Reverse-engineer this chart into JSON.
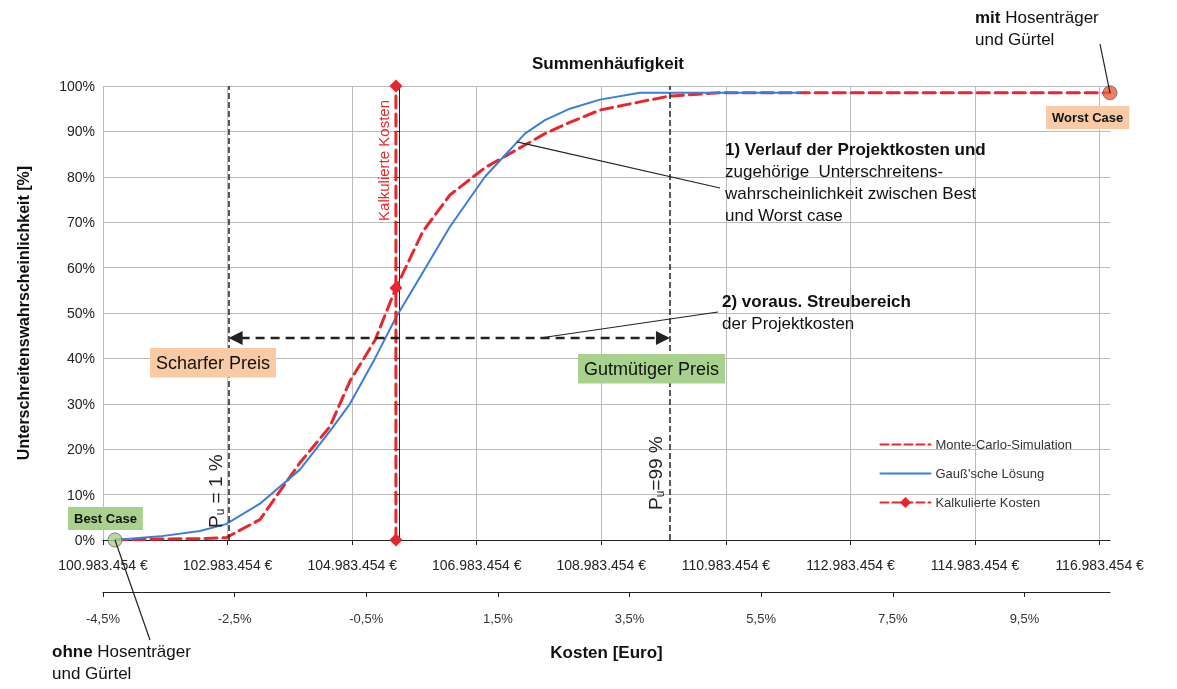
{
  "chart_data": {
    "type": "line",
    "title": "Summenhäufigkeit",
    "xlabel": "Kosten [Euro]",
    "ylabel": "Unterschreitenswahrscheinlichkeit [%]",
    "xlim": [
      100983454,
      117150000
    ],
    "xticks": [
      {
        "value": 100983454,
        "label": "100.983.454 €"
      },
      {
        "value": 102983454,
        "label": "102.983.454 €"
      },
      {
        "value": 104983454,
        "label": "104.983.454 €"
      },
      {
        "value": 106983454,
        "label": "106.983.454 €"
      },
      {
        "value": 108983454,
        "label": "108.983.454 €"
      },
      {
        "value": 110983454,
        "label": "110.983.454 €"
      },
      {
        "value": 112983454,
        "label": "112.983.454 €"
      },
      {
        "value": 114983454,
        "label": "114.983.454 €"
      },
      {
        "value": 116983454,
        "label": "116.983.454 €"
      }
    ],
    "x2lim": [
      -4.5,
      10.8
    ],
    "x2ticks": [
      {
        "value": -4.5,
        "label": "-4,5%"
      },
      {
        "value": -2.5,
        "label": "-2,5%"
      },
      {
        "value": -0.5,
        "label": "-0,5%"
      },
      {
        "value": 1.5,
        "label": "1,5%"
      },
      {
        "value": 3.5,
        "label": "3,5%"
      },
      {
        "value": 5.5,
        "label": "5,5%"
      },
      {
        "value": 7.5,
        "label": "7,5%"
      },
      {
        "value": 9.5,
        "label": "9,5%"
      }
    ],
    "ylim": [
      0,
      100
    ],
    "yticks": [
      {
        "value": 0,
        "label": "0%"
      },
      {
        "value": 10,
        "label": "10%"
      },
      {
        "value": 20,
        "label": "20%"
      },
      {
        "value": 30,
        "label": "30%"
      },
      {
        "value": 40,
        "label": "40%"
      },
      {
        "value": 50,
        "label": "50%"
      },
      {
        "value": 60,
        "label": "60%"
      },
      {
        "value": 70,
        "label": "70%"
      },
      {
        "value": 80,
        "label": "80%"
      },
      {
        "value": 90,
        "label": "90%"
      },
      {
        "value": 100,
        "label": "100%"
      }
    ],
    "grid": true,
    "legend": "bottom right",
    "series": [
      {
        "name": "Monte-Carlo-Simulation",
        "color": "#e8262d",
        "line_style": "dashed",
        "marker": "none",
        "x": [
          101176000,
          101898000,
          102540000,
          102958000,
          103503000,
          104145000,
          104627000,
          104948000,
          105350000,
          105686000,
          106120000,
          106553000,
          107115000,
          107757000,
          108078000,
          108479000,
          108961000,
          109603000,
          110085000,
          110888000,
          112172000,
          117150000
        ],
        "values": [
          0,
          0.2,
          0.3,
          0.5,
          4.5,
          17,
          25,
          35,
          44,
          55.5,
          68,
          76,
          82,
          87,
          89.5,
          92,
          94.7,
          96.5,
          97.8,
          98.5,
          98.5,
          98.5
        ]
      },
      {
        "name": "Gauß'sche Lösung",
        "color": "#3a7fd5",
        "line_style": "solid",
        "marker": "none",
        "x": [
          101176000,
          101898000,
          102540000,
          102958000,
          103503000,
          104145000,
          104627000,
          104948000,
          105350000,
          105686000,
          106120000,
          106553000,
          107115000,
          107757000,
          108078000,
          108479000,
          108961000,
          109603000,
          110085000,
          112172000
        ],
        "values": [
          0,
          0.8,
          2,
          3.5,
          8,
          15.5,
          24,
          30,
          40,
          49,
          59,
          69,
          80,
          89.5,
          92.5,
          95,
          97,
          98.5,
          98.5,
          98.5
        ]
      },
      {
        "name": "Kalkulierte Kosten",
        "color": "#e8262d",
        "line_style": "dashed",
        "marker": "diamond",
        "x": [
          105686000,
          105686000,
          105686000
        ],
        "values": [
          0,
          55.5,
          100
        ]
      },
      {
        "type": "scatter",
        "marker": "circle",
        "x": [
          101176000,
          117150000
        ],
        "values": [
          0,
          98.5
        ],
        "colors": [
          "#a9d18e",
          "#e8603c"
        ]
      }
    ],
    "ref_lines": [
      {
        "axis": "x",
        "value": 103000000,
        "color": "#222222",
        "line_style": "dashed"
      },
      {
        "axis": "x",
        "value": 110085000,
        "color": "#222222",
        "line_style": "dashed"
      }
    ],
    "annotations": [
      "Best Case",
      "Worst Case",
      {
        "text": "mit Hosenträger\nund Gürtel",
        "x": 117150000,
        "y": 98.5
      },
      {
        "text": "ohne Hosenträger\nund Gürtel",
        "x": 101176000,
        "y": 0
      },
      {
        "text": "1) Verlauf der Projektkosten und\nzugehörige  Unterschreitens-\nwahrscheinlichkeit zwischen Best\nund Worst case",
        "x": 107630000,
        "y": 87.7
      },
      "2) voraus. Streubereich\nder Projektkosten",
      "Scharfer Preis",
      "Gutmütiger Preis",
      "P$_{u}$ = 1 %",
      "P$_{u}$=99 %"
    ]
  }
}
